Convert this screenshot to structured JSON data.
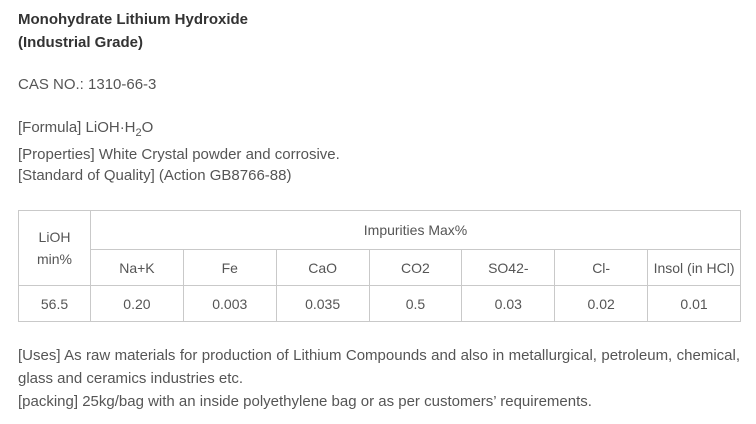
{
  "header": {
    "title_line1": "Monohydrate Lithium Hydroxide",
    "title_line2": "(Industrial Grade)"
  },
  "info": {
    "cas": "CAS NO.: 1310-66-3",
    "formula_prefix": "[Formula] LiOH·H",
    "formula_subscript": "2",
    "formula_suffix": "O",
    "properties": "[Properties] White Crystal powder and corrosive.",
    "standard_of_quality": "[Standard of Quality] (Action GB8766-88)"
  },
  "table": {
    "lioh_header_line1": "LiOH",
    "lioh_header_line2": "min%",
    "group_header": "Impurities Max%",
    "impurity_columns": [
      "Na+K",
      "Fe",
      "CaO",
      "CO2",
      "SO42-",
      "Cl-",
      "Insol (in HCl)"
    ],
    "lioh_value": "56.5",
    "impurity_values": [
      "0.20",
      "0.003",
      "0.035",
      "0.5",
      "0.03",
      "0.02",
      "0.01"
    ]
  },
  "footer": {
    "uses": "[Uses] As raw materials for production of Lithium Compounds and also in metallurgical, petroleum, chemical, glass and ceramics industries etc.",
    "packing": "[packing] 25kg/bag with an inside polyethylene bag or as per customers’ requirements."
  },
  "colors": {
    "title_text": "#333333",
    "body_text": "#555555",
    "table_border": "#c9c9c9",
    "background": "#ffffff"
  }
}
